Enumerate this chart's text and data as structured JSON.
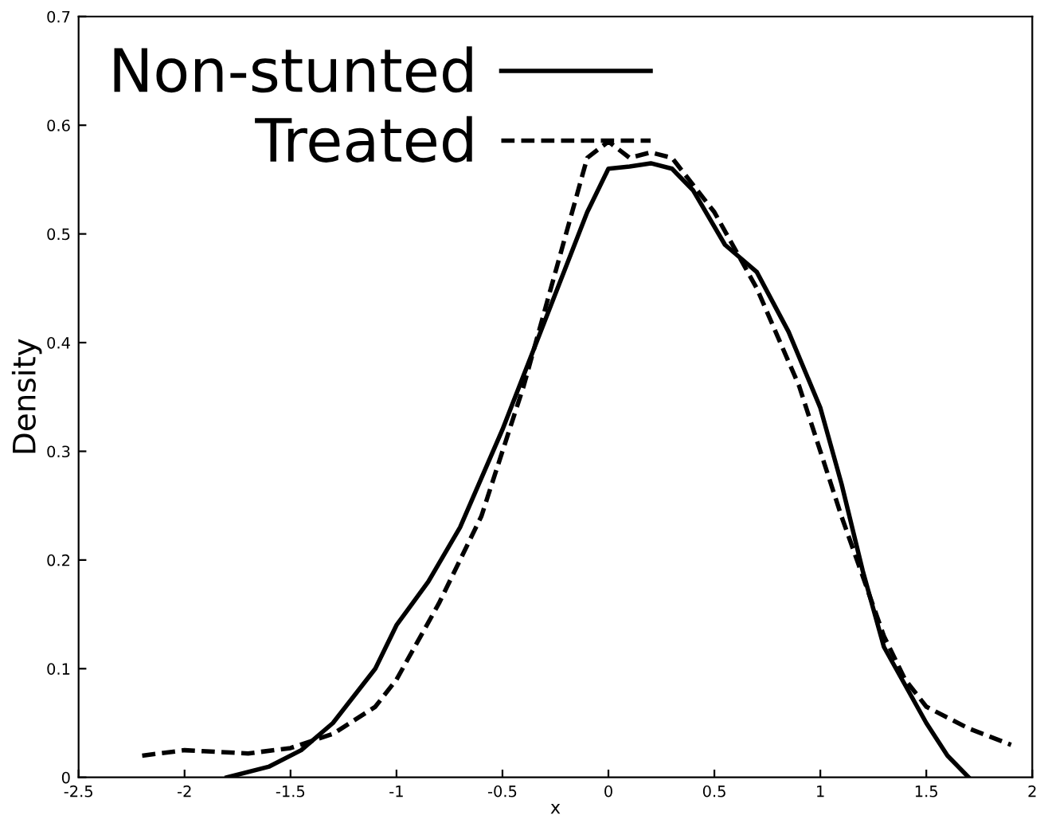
{
  "chart_data": {
    "type": "line",
    "xlabel": "x",
    "ylabel": "Density",
    "xlim": [
      -2.5,
      2
    ],
    "ylim": [
      0,
      0.7
    ],
    "xticks": [
      -2.5,
      -2,
      -1.5,
      -1,
      -0.5,
      0,
      0.5,
      1,
      1.5,
      2
    ],
    "yticks": [
      0,
      0.1,
      0.2,
      0.3,
      0.4,
      0.5,
      0.6,
      0.7
    ],
    "legend": "top left",
    "grid": false,
    "marker": "none",
    "series": [
      {
        "name": "Non-stunted",
        "color": "#000000",
        "line_style": "solid",
        "x": [
          -1.8,
          -1.6,
          -1.45,
          -1.3,
          -1.1,
          -1.0,
          -0.85,
          -0.7,
          -0.5,
          -0.3,
          -0.1,
          0,
          0.1,
          0.2,
          0.3,
          0.4,
          0.55,
          0.7,
          0.85,
          1.0,
          1.1,
          1.2,
          1.3,
          1.4,
          1.5,
          1.6,
          1.7
        ],
        "values": [
          0.0,
          0.01,
          0.025,
          0.05,
          0.1,
          0.14,
          0.18,
          0.23,
          0.32,
          0.42,
          0.52,
          0.56,
          0.562,
          0.565,
          0.56,
          0.54,
          0.49,
          0.465,
          0.41,
          0.34,
          0.27,
          0.19,
          0.12,
          0.085,
          0.05,
          0.02,
          0.0
        ]
      },
      {
        "name": "Treated",
        "color": "#000000",
        "line_style": "dashed",
        "x": [
          -2.2,
          -2.0,
          -1.7,
          -1.5,
          -1.3,
          -1.1,
          -1.0,
          -0.8,
          -0.6,
          -0.4,
          -0.2,
          -0.1,
          0,
          0.1,
          0.2,
          0.3,
          0.5,
          0.7,
          0.9,
          1.1,
          1.3,
          1.4,
          1.5,
          1.7,
          1.9
        ],
        "values": [
          0.02,
          0.025,
          0.022,
          0.027,
          0.04,
          0.065,
          0.09,
          0.16,
          0.24,
          0.36,
          0.5,
          0.57,
          0.585,
          0.57,
          0.575,
          0.57,
          0.52,
          0.45,
          0.36,
          0.24,
          0.13,
          0.09,
          0.065,
          0.045,
          0.03
        ]
      }
    ]
  }
}
